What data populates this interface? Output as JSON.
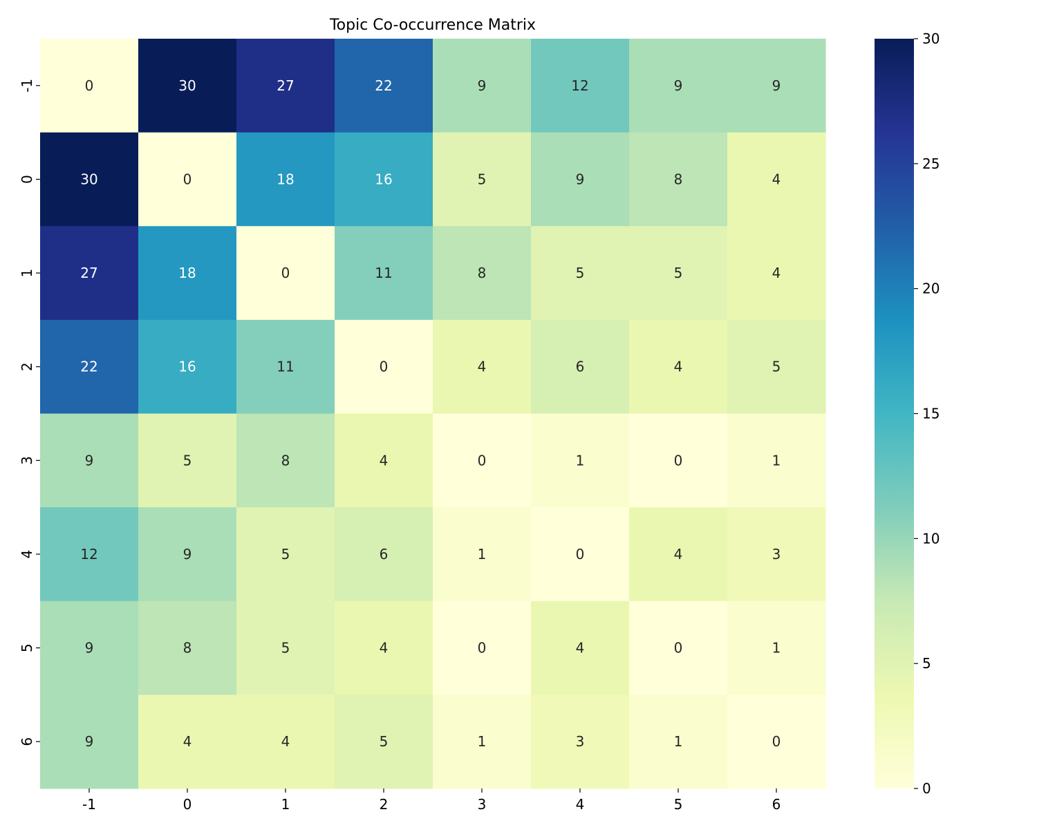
{
  "chart_data": {
    "type": "heatmap",
    "title": "Topic Co-occurrence Matrix",
    "xlabel": "",
    "ylabel": "",
    "x_categories": [
      "-1",
      "0",
      "1",
      "2",
      "3",
      "4",
      "5",
      "6"
    ],
    "y_categories": [
      "-1",
      "0",
      "1",
      "2",
      "3",
      "4",
      "5",
      "6"
    ],
    "values": [
      [
        0,
        30,
        27,
        22,
        9,
        12,
        9,
        9
      ],
      [
        30,
        0,
        18,
        16,
        5,
        9,
        8,
        4
      ],
      [
        27,
        18,
        0,
        11,
        8,
        5,
        5,
        4
      ],
      [
        22,
        16,
        11,
        0,
        4,
        6,
        4,
        5
      ],
      [
        9,
        5,
        8,
        4,
        0,
        1,
        0,
        1
      ],
      [
        12,
        9,
        5,
        6,
        1,
        0,
        4,
        3
      ],
      [
        9,
        8,
        5,
        4,
        0,
        4,
        0,
        1
      ],
      [
        9,
        4,
        4,
        5,
        1,
        3,
        1,
        0
      ]
    ],
    "color_range": [
      0,
      30
    ],
    "colormap": "YlGnBu",
    "colorbar_ticks": [
      0,
      5,
      10,
      15,
      20,
      25,
      30
    ],
    "annotated": true,
    "colors": {
      "text_dark": "#262626",
      "text_light": "#ffffff",
      "axis": "#000000"
    }
  }
}
